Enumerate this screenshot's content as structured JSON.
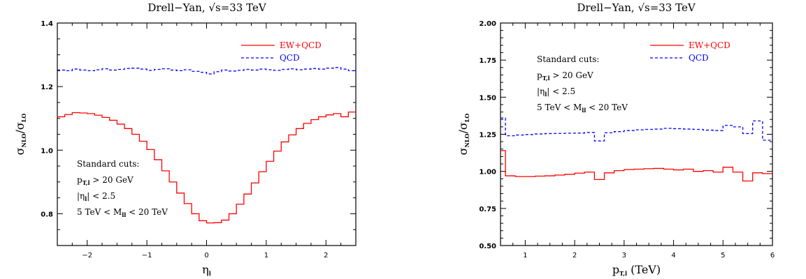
{
  "chart_data": [
    {
      "type": "line",
      "title": "Drell−Yan, √s=33 TeV",
      "xlabel": "η",
      "xlabel_sub": "l",
      "ylabel": "σ",
      "ylabel_sub1": "NLO",
      "ylabel_mid": "/σ",
      "ylabel_sub2": "LO",
      "xlim": [
        -2.5,
        2.5
      ],
      "ylim": [
        0.7,
        1.4
      ],
      "xticks": [
        -2,
        -1,
        0,
        1,
        2
      ],
      "xtick_labels": [
        "−2",
        "−1",
        "0",
        "1",
        "2"
      ],
      "yticks": [
        0.8,
        1.0,
        1.2,
        1.4
      ],
      "ytick_labels": [
        "0.8",
        "1.0",
        "1.2",
        "1.4"
      ],
      "legend_position": "top-right",
      "annotations": [
        {
          "text": "Standard cuts:"
        },
        {
          "pre": "p",
          "sub": "T,l",
          "post": " > 20 GeV"
        },
        {
          "pre": "|η",
          "sub": "l",
          "post": "| < 2.5"
        },
        {
          "pre": "5 TeV < M",
          "sub": "ll",
          "post": " < 20 TeV"
        }
      ],
      "bin_edges": [
        -2.5,
        -2.375,
        -2.25,
        -2.125,
        -2.0,
        -1.875,
        -1.75,
        -1.625,
        -1.5,
        -1.375,
        -1.25,
        -1.125,
        -1.0,
        -0.875,
        -0.75,
        -0.625,
        -0.5,
        -0.375,
        -0.25,
        -0.125,
        0.0,
        0.125,
        0.25,
        0.375,
        0.5,
        0.625,
        0.75,
        0.875,
        1.0,
        1.125,
        1.25,
        1.375,
        1.5,
        1.625,
        1.75,
        1.875,
        2.0,
        2.125,
        2.25,
        2.375,
        2.5
      ],
      "series": [
        {
          "name": "EW+QCD",
          "color": "#ff0000",
          "dash": "solid",
          "values": [
            1.105,
            1.112,
            1.118,
            1.117,
            1.115,
            1.11,
            1.103,
            1.094,
            1.082,
            1.068,
            1.05,
            1.028,
            1.002,
            0.97,
            0.935,
            0.9,
            0.865,
            0.832,
            0.8,
            0.778,
            0.771,
            0.772,
            0.78,
            0.8,
            0.83,
            0.862,
            0.897,
            0.932,
            0.965,
            0.997,
            1.026,
            1.048,
            1.068,
            1.084,
            1.096,
            1.105,
            1.111,
            1.115,
            1.105,
            1.12
          ]
        },
        {
          "name": "QCD",
          "color": "#0000ff",
          "dash": "4,3",
          "values": [
            1.252,
            1.25,
            1.255,
            1.252,
            1.25,
            1.253,
            1.256,
            1.252,
            1.254,
            1.257,
            1.258,
            1.255,
            1.251,
            1.254,
            1.256,
            1.252,
            1.25,
            1.253,
            1.248,
            1.245,
            1.24,
            1.247,
            1.252,
            1.249,
            1.251,
            1.254,
            1.252,
            1.255,
            1.253,
            1.251,
            1.254,
            1.256,
            1.253,
            1.255,
            1.257,
            1.255,
            1.258,
            1.26,
            1.255,
            1.25
          ]
        }
      ]
    },
    {
      "type": "line",
      "title": "Drell−Yan, √s=33 TeV",
      "xlabel": "p",
      "xlabel_sub": "T,l",
      "xlabel_post": " (TeV)",
      "ylabel": "σ",
      "ylabel_sub1": "NLO",
      "ylabel_mid": "/σ",
      "ylabel_sub2": "LO",
      "xlim": [
        0.5,
        6.0
      ],
      "ylim": [
        0.5,
        2.0
      ],
      "xticks": [
        1,
        2,
        3,
        4,
        5,
        6
      ],
      "xtick_labels": [
        "1",
        "2",
        "3",
        "4",
        "5",
        "6"
      ],
      "yticks": [
        0.5,
        0.75,
        1.0,
        1.25,
        1.5,
        1.75,
        2.0
      ],
      "ytick_labels": [
        "0.50",
        "0.75",
        "1.00",
        "1.25",
        "1.50",
        "1.75",
        "2.00"
      ],
      "legend_position": "top-right",
      "annotations": [
        {
          "text": "Standard cuts:"
        },
        {
          "pre": "p",
          "sub": "T,l",
          "post": " > 20 GeV"
        },
        {
          "pre": "|η",
          "sub": "l",
          "post": "| < 2.5"
        },
        {
          "pre": "5 TeV < M",
          "sub": "ll",
          "post": " < 20 TeV"
        }
      ],
      "bin_edges": [
        0.5,
        0.6,
        0.8,
        1.0,
        1.2,
        1.4,
        1.6,
        1.8,
        2.0,
        2.2,
        2.4,
        2.6,
        2.8,
        3.0,
        3.2,
        3.4,
        3.6,
        3.8,
        4.0,
        4.2,
        4.4,
        4.6,
        4.8,
        5.0,
        5.2,
        5.4,
        5.6,
        5.8,
        6.0
      ],
      "series": [
        {
          "name": "EW+QCD",
          "color": "#ff0000",
          "dash": "solid",
          "values": [
            1.14,
            0.97,
            0.965,
            0.965,
            0.968,
            0.97,
            0.975,
            0.98,
            0.988,
            0.995,
            0.945,
            0.99,
            1.005,
            1.012,
            1.015,
            1.018,
            1.02,
            1.015,
            1.01,
            1.015,
            1.0,
            1.005,
            0.995,
            1.028,
            0.995,
            0.935,
            0.99,
            0.985
          ]
        },
        {
          "name": "QCD",
          "color": "#0000ff",
          "dash": "4,3",
          "values": [
            1.36,
            1.24,
            1.245,
            1.248,
            1.252,
            1.255,
            1.256,
            1.257,
            1.258,
            1.262,
            1.205,
            1.26,
            1.268,
            1.275,
            1.28,
            1.283,
            1.285,
            1.29,
            1.288,
            1.285,
            1.283,
            1.278,
            1.275,
            1.31,
            1.3,
            1.255,
            1.34,
            1.21
          ]
        }
      ]
    }
  ]
}
